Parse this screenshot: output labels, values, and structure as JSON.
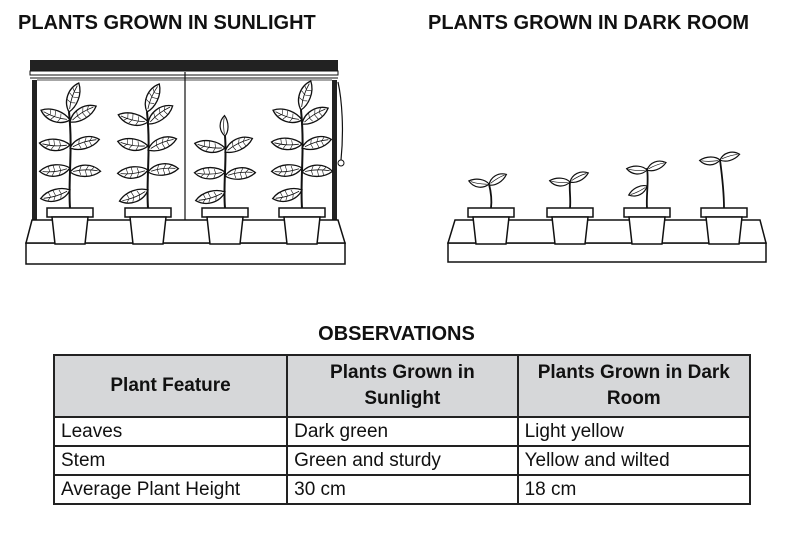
{
  "scene": {
    "left_heading": "PLANTS GROWN IN SUNLIGHT",
    "right_heading": "PLANTS GROWN IN DARK ROOM"
  },
  "observations": {
    "title": "OBSERVATIONS",
    "headers": [
      "Plant Feature",
      "Plants Grown in Sunlight",
      "Plants Grown in Dark Room"
    ],
    "rows": [
      [
        "Leaves",
        "Dark green",
        "Light yellow"
      ],
      [
        "Stem",
        "Green and sturdy",
        "Yellow and wilted"
      ],
      [
        "Average Plant Height",
        "30 cm",
        "18 cm"
      ]
    ]
  }
}
